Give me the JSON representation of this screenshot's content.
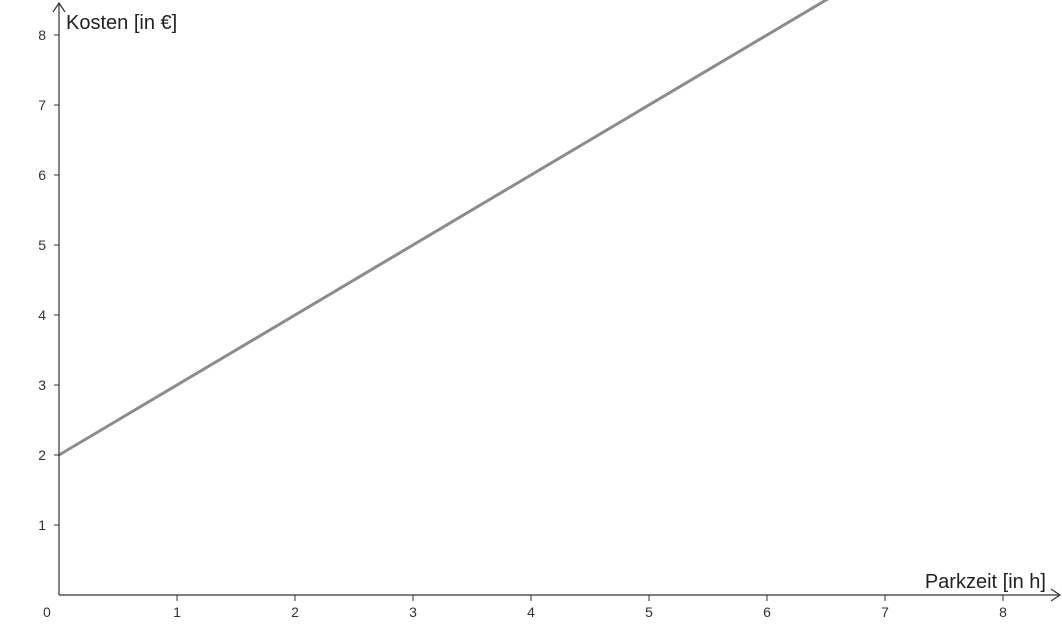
{
  "chart_data": {
    "type": "line",
    "xlabel": "Parkzeit [in h]",
    "ylabel": "Kosten [in €]",
    "origin_label": "0",
    "x_ticks": [
      "1",
      "2",
      "3",
      "4",
      "5",
      "6",
      "7",
      "8"
    ],
    "y_ticks": [
      "1",
      "2",
      "3",
      "4",
      "5",
      "6",
      "7",
      "8"
    ],
    "xlim": [
      0,
      8.5
    ],
    "ylim": [
      0,
      8.5
    ],
    "grid": false,
    "series": [
      {
        "color": "#8c8c8c",
        "x": [
          0,
          6.55
        ],
        "y": [
          2,
          8.55
        ]
      }
    ]
  }
}
